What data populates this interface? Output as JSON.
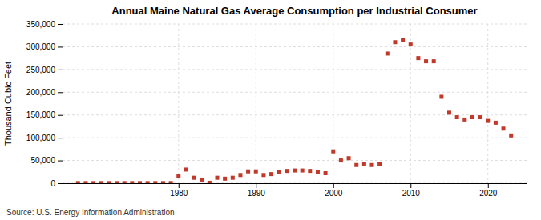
{
  "chart_data": {
    "type": "scatter",
    "title": "Annual Maine Natural Gas Average Consumption per Industrial Consumer",
    "ylabel": "Thousand Cubic Feet",
    "source": "Source: U.S. Energy Information Administration",
    "color": "#c0392b",
    "marker": "square",
    "grid": true,
    "x": [
      1967,
      1968,
      1969,
      1970,
      1971,
      1972,
      1973,
      1974,
      1975,
      1976,
      1977,
      1978,
      1979,
      1980,
      1981,
      1982,
      1983,
      1984,
      1985,
      1986,
      1987,
      1988,
      1989,
      1990,
      1991,
      1992,
      1993,
      1994,
      1995,
      1996,
      1997,
      1998,
      1999,
      2000,
      2001,
      2002,
      2003,
      2004,
      2005,
      2006,
      2007,
      2008,
      2009,
      2010,
      2011,
      2012,
      2013,
      2014,
      2015,
      2016,
      2017,
      2018,
      2019,
      2020,
      2021,
      2022,
      2023
    ],
    "values": [
      300,
      300,
      300,
      300,
      300,
      300,
      300,
      300,
      300,
      300,
      300,
      300,
      400,
      16000,
      30000,
      12000,
      8000,
      1000,
      12000,
      10000,
      12000,
      18000,
      26000,
      26000,
      18000,
      20000,
      25000,
      27000,
      28000,
      28000,
      27000,
      24000,
      22000,
      70000,
      50000,
      55000,
      40000,
      42000,
      40000,
      42000,
      285000,
      310000,
      315000,
      305000,
      275000,
      268000,
      268000,
      190000,
      155000,
      145000,
      140000,
      145000,
      145000,
      137000,
      133000,
      120000,
      105000
    ],
    "xlim": [
      1965,
      2025
    ],
    "ylim": [
      0,
      350000
    ],
    "xticks": [
      1980,
      1990,
      2000,
      2010,
      2020
    ],
    "yticks": [
      0,
      {
        "value": 50000,
        "label": "50,000"
      },
      {
        "value": 100000,
        "label": "100,000"
      },
      {
        "value": 150000,
        "label": "150,000"
      },
      {
        "value": 200000,
        "label": "200,000"
      },
      {
        "value": 250000,
        "label": "250,000"
      },
      {
        "value": 300000,
        "label": "300,000"
      },
      {
        "value": 350000,
        "label": "350,000"
      }
    ]
  }
}
